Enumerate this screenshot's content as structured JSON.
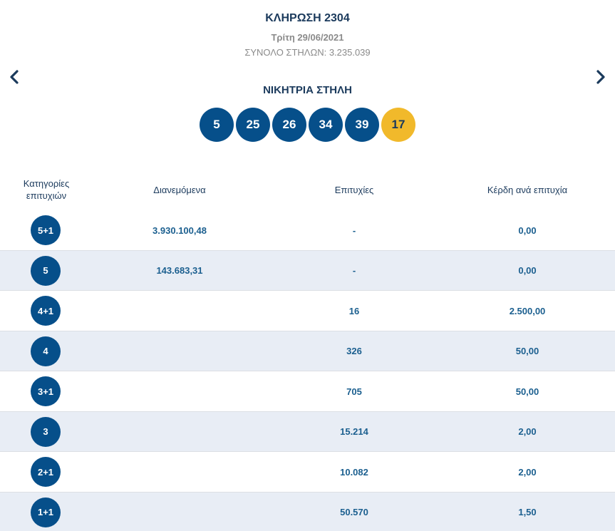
{
  "draw": {
    "title": "ΚΛΗΡΩΣΗ 2304",
    "date": "Τρίτη 29/06/2021",
    "total_columns": "ΣΥΝΟΛΟ ΣΤΗΛΩΝ: 3.235.039",
    "winning_label": "ΝΙΚΗΤΡΙΑ ΣΤΗΛΗ",
    "numbers": [
      "5",
      "25",
      "26",
      "34",
      "39"
    ],
    "joker": "17"
  },
  "navigation": {
    "prev_icon": "chevron-left-icon",
    "next_icon": "chevron-right-icon"
  },
  "colors": {
    "ball": "#064f8a",
    "joker": "#f1b92b",
    "row_alt": "#e8edf5",
    "value_text": "#1b5f8f"
  },
  "table": {
    "headers": {
      "category_line1": "Κατηγορίες",
      "category_line2": "επιτυχιών",
      "distributed": "Διανεμόμενα",
      "winners": "Επιτυχίες",
      "prize": "Κέρδη ανά επιτυχία"
    },
    "rows": [
      {
        "category": "5+1",
        "distributed": "3.930.100,48",
        "winners": "-",
        "prize": "0,00"
      },
      {
        "category": "5",
        "distributed": "143.683,31",
        "winners": "-",
        "prize": "0,00"
      },
      {
        "category": "4+1",
        "distributed": "",
        "winners": "16",
        "prize": "2.500,00"
      },
      {
        "category": "4",
        "distributed": "",
        "winners": "326",
        "prize": "50,00"
      },
      {
        "category": "3+1",
        "distributed": "",
        "winners": "705",
        "prize": "50,00"
      },
      {
        "category": "3",
        "distributed": "",
        "winners": "15.214",
        "prize": "2,00"
      },
      {
        "category": "2+1",
        "distributed": "",
        "winners": "10.082",
        "prize": "2,00"
      },
      {
        "category": "1+1",
        "distributed": "",
        "winners": "50.570",
        "prize": "1,50"
      }
    ]
  }
}
